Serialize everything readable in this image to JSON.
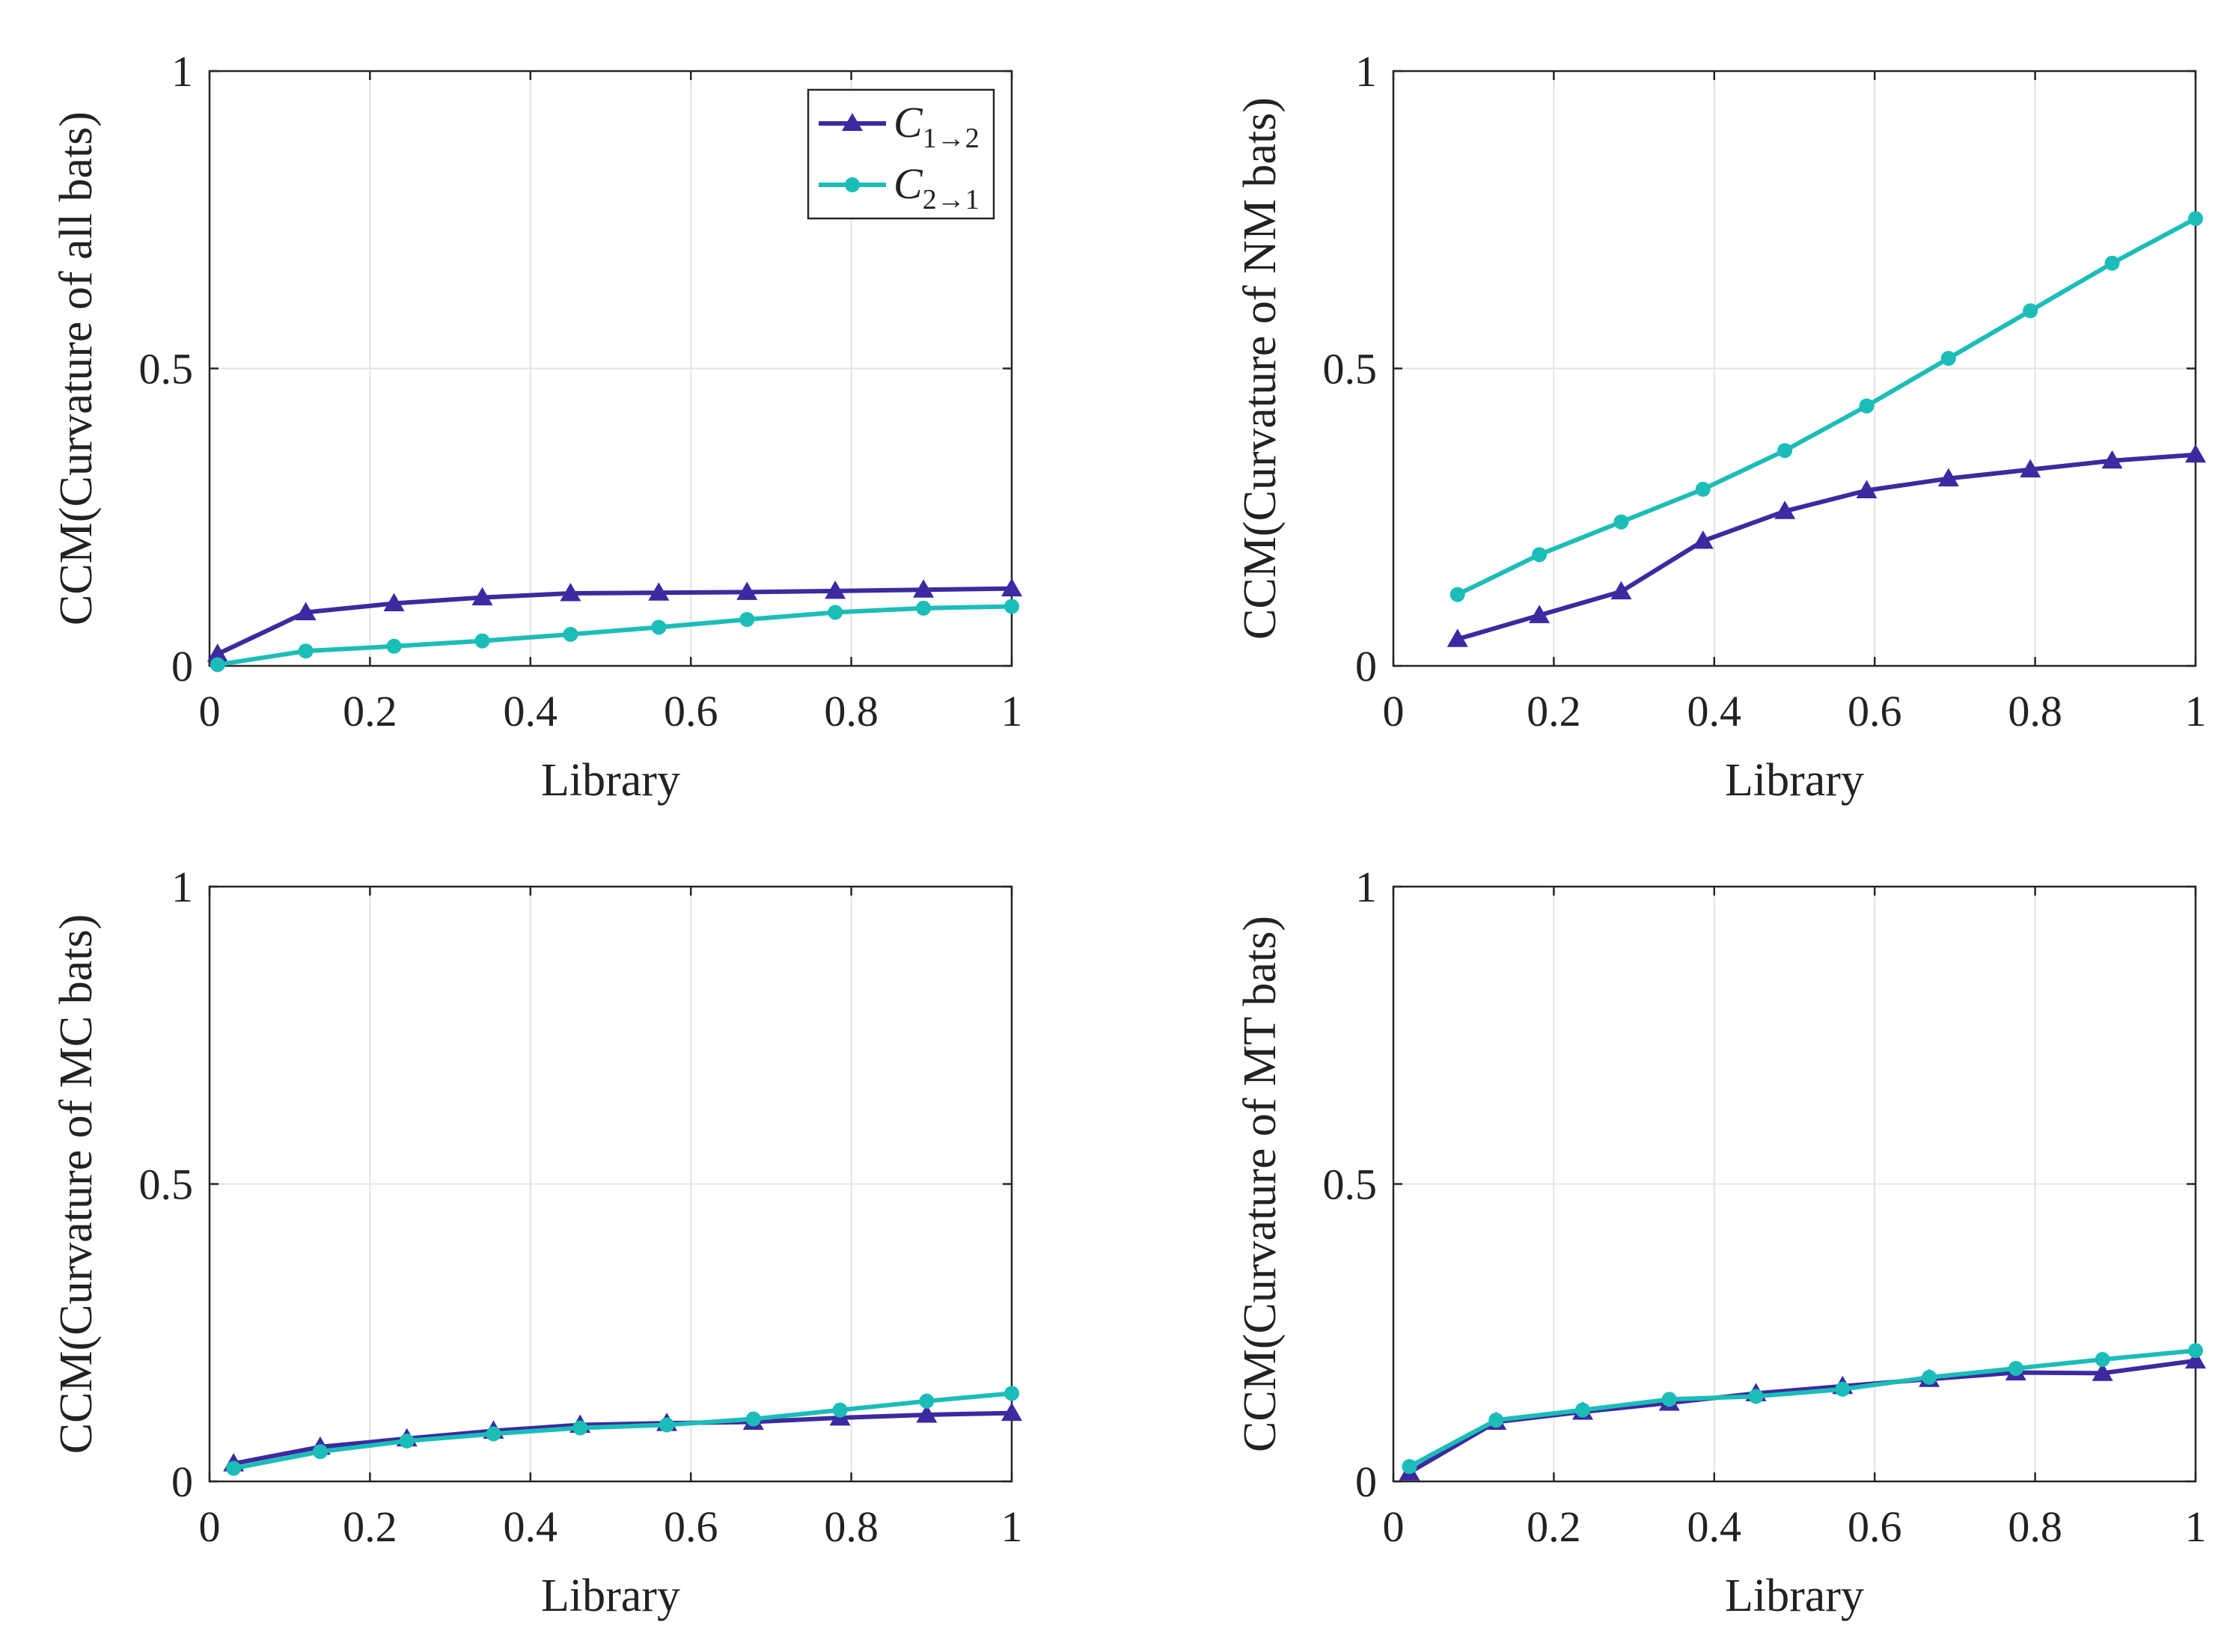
{
  "colors": {
    "c12": "#3b2aa0",
    "c21": "#1cbdb8"
  },
  "legend": {
    "c12_label": "C",
    "c12_sub": "1→2",
    "c21_label": "C",
    "c21_sub": "2→1"
  },
  "chart_data": [
    {
      "type": "line",
      "xlabel": "Library",
      "ylabel": "CCM(Curvature of all bats)",
      "xlim": [
        0,
        1
      ],
      "ylim": [
        0,
        1
      ],
      "xticks": [
        "0",
        "0.2",
        "0.4",
        "0.6",
        "0.8",
        "1"
      ],
      "yticks": [
        "0",
        "0.5",
        "1"
      ],
      "x": [
        0.01,
        0.12,
        0.23,
        0.34,
        0.45,
        0.56,
        0.67,
        0.78,
        0.89,
        1.0
      ],
      "series": [
        {
          "name": "C1→2",
          "marker": "triangle",
          "values": [
            0.02,
            0.09,
            0.105,
            0.115,
            0.122,
            0.123,
            0.124,
            0.126,
            0.128,
            0.13
          ]
        },
        {
          "name": "C2→1",
          "marker": "circle",
          "values": [
            0.002,
            0.025,
            0.033,
            0.042,
            0.053,
            0.065,
            0.078,
            0.09,
            0.097,
            0.1
          ]
        }
      ],
      "legend_position": "top-right"
    },
    {
      "type": "line",
      "xlabel": "Library",
      "ylabel": "CCM(Curvature of NM bats)",
      "xlim": [
        0,
        1
      ],
      "ylim": [
        0,
        1
      ],
      "xticks": [
        "0",
        "0.2",
        "0.4",
        "0.6",
        "0.8",
        "1"
      ],
      "yticks": [
        "0",
        "0.5",
        "1"
      ],
      "x": [
        0.08,
        0.182,
        0.284,
        0.386,
        0.488,
        0.59,
        0.692,
        0.794,
        0.896,
        1.0
      ],
      "series": [
        {
          "name": "C1→2",
          "marker": "triangle",
          "values": [
            0.045,
            0.085,
            0.125,
            0.21,
            0.26,
            0.295,
            0.315,
            0.33,
            0.345,
            0.355
          ]
        },
        {
          "name": "C2→1",
          "marker": "circle",
          "values": [
            0.12,
            0.187,
            0.242,
            0.297,
            0.362,
            0.437,
            0.517,
            0.597,
            0.677,
            0.752
          ]
        }
      ]
    },
    {
      "type": "line",
      "xlabel": "Library",
      "ylabel": "CCM(Curvature of MC bats)",
      "xlim": [
        0,
        1
      ],
      "ylim": [
        0,
        1
      ],
      "xticks": [
        "0",
        "0.2",
        "0.4",
        "0.6",
        "0.8",
        "1"
      ],
      "yticks": [
        "0",
        "0.5",
        "1"
      ],
      "x": [
        0.03,
        0.138,
        0.246,
        0.354,
        0.462,
        0.57,
        0.678,
        0.786,
        0.894,
        1.0
      ],
      "series": [
        {
          "name": "C1→2",
          "marker": "triangle",
          "values": [
            0.03,
            0.058,
            0.072,
            0.085,
            0.095,
            0.098,
            0.1,
            0.107,
            0.112,
            0.115
          ]
        },
        {
          "name": "C2→1",
          "marker": "circle",
          "values": [
            0.022,
            0.05,
            0.068,
            0.08,
            0.09,
            0.095,
            0.105,
            0.12,
            0.135,
            0.148
          ]
        }
      ]
    },
    {
      "type": "line",
      "xlabel": "Library",
      "ylabel": "CCM(Curvature of MT bats)",
      "xlim": [
        0,
        1
      ],
      "ylim": [
        0,
        1
      ],
      "xticks": [
        "0",
        "0.2",
        "0.4",
        "0.6",
        "0.8",
        "1"
      ],
      "yticks": [
        "0",
        "0.5",
        "1"
      ],
      "x": [
        0.02,
        0.128,
        0.236,
        0.344,
        0.452,
        0.56,
        0.668,
        0.776,
        0.884,
        1.0
      ],
      "series": [
        {
          "name": "C1→2",
          "marker": "triangle",
          "values": [
            0.015,
            0.1,
            0.117,
            0.132,
            0.148,
            0.16,
            0.172,
            0.183,
            0.182,
            0.203
          ]
        },
        {
          "name": "C2→1",
          "marker": "circle",
          "values": [
            0.025,
            0.103,
            0.12,
            0.138,
            0.143,
            0.155,
            0.175,
            0.19,
            0.205,
            0.22
          ]
        }
      ]
    }
  ]
}
